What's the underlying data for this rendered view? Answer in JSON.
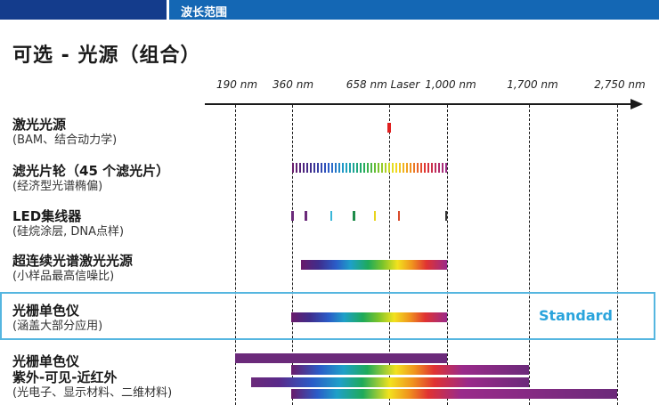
{
  "header": {
    "section_label": "波长范围"
  },
  "title": "可选 - 光源（组合）",
  "axis": {
    "ticks": [
      {
        "label": "190 nm",
        "nm": 190
      },
      {
        "label": "360 nm",
        "nm": 360
      },
      {
        "label": "658 nm Laser",
        "nm": 658
      },
      {
        "label": "1,000 nm",
        "nm": 1000
      },
      {
        "label": "1,700 nm",
        "nm": 1700
      },
      {
        "label": "2,750 nm",
        "nm": 2750
      }
    ]
  },
  "rows": [
    {
      "name": "激光光源",
      "sub": "(BAM、结合动力学)"
    },
    {
      "name": "滤光片轮（45 个滤光片）",
      "sub": "(经济型光谱椭偏)"
    },
    {
      "name": "LED集线器",
      "sub": "(硅烷涂层, DNA点样)"
    },
    {
      "name": "超连续光谱激光光源",
      "sub": "(小样品最高信噪比)"
    },
    {
      "name": "光栅单色仪",
      "sub": "(涵盖大部分应用)",
      "badge": "Standard"
    },
    {
      "name": "光栅单色仪",
      "name2": "紫外-可见-近红外",
      "sub": "(光电子、显示材料、二维材料)"
    }
  ],
  "ranges": {
    "laser_nm": 658,
    "filter_wheel": [
      360,
      1000
    ],
    "led_hub": [
      360,
      1000
    ],
    "supercontinuum": [
      400,
      1000
    ],
    "grating_standard": [
      360,
      1000
    ],
    "grating_uvvisnir": [
      [
        190,
        1000
      ],
      [
        360,
        1700
      ],
      [
        250,
        1700
      ],
      [
        360,
        2750
      ]
    ]
  },
  "colors": {
    "band_dark": "#143c8c",
    "band_blue": "#1467b4",
    "standard": "#2aa4dc",
    "highlight_border": "#55b6e0",
    "laser": "#e02020",
    "uv_purple": "#6b2a7a"
  },
  "led_marks": [
    {
      "nm": 360,
      "color": "#6b2a7a"
    },
    {
      "nm": 405,
      "color": "#6b2a7a"
    },
    {
      "nm": 470,
      "color": "#3ab6d8"
    },
    {
      "nm": 530,
      "color": "#1e8c4a"
    },
    {
      "nm": 590,
      "color": "#e8d41e"
    },
    {
      "nm": 635,
      "color": "#d84a2a"
    },
    {
      "nm": 1000,
      "color": "#333333"
    }
  ]
}
